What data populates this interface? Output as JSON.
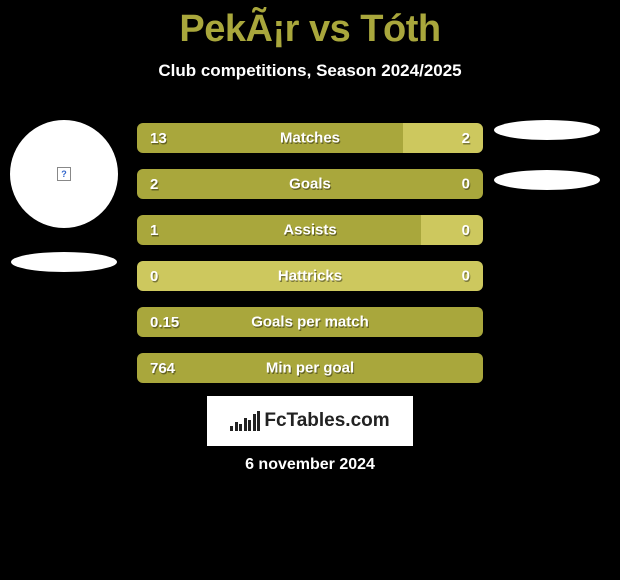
{
  "title": "PekÃ¡r vs Tóth",
  "subtitle": "Club competitions, Season 2024/2025",
  "colors": {
    "background": "#000000",
    "accent": "#a9a73c",
    "bar_left": "#a9a73c",
    "bar_right": "#cdc85e",
    "text": "#ffffff"
  },
  "title_fontsize": 38,
  "subtitle_fontsize": 17,
  "stat_fontsize": 15,
  "stats": [
    {
      "label": "Matches",
      "left_val": "13",
      "right_val": "2",
      "left_pct": 77,
      "right_pct": 23
    },
    {
      "label": "Goals",
      "left_val": "2",
      "right_val": "0",
      "left_pct": 100,
      "right_pct": 0
    },
    {
      "label": "Assists",
      "left_val": "1",
      "right_val": "0",
      "left_pct": 82,
      "right_pct": 18
    },
    {
      "label": "Hattricks",
      "left_val": "0",
      "right_val": "0",
      "left_pct": 0,
      "right_pct": 100
    },
    {
      "label": "Goals per match",
      "left_val": "0.15",
      "right_val": "",
      "left_pct": 100,
      "right_pct": 0
    },
    {
      "label": "Min per goal",
      "left_val": "764",
      "right_val": "",
      "left_pct": 100,
      "right_pct": 0
    }
  ],
  "logo_text": "FcTables.com",
  "date": "6 november 2024"
}
